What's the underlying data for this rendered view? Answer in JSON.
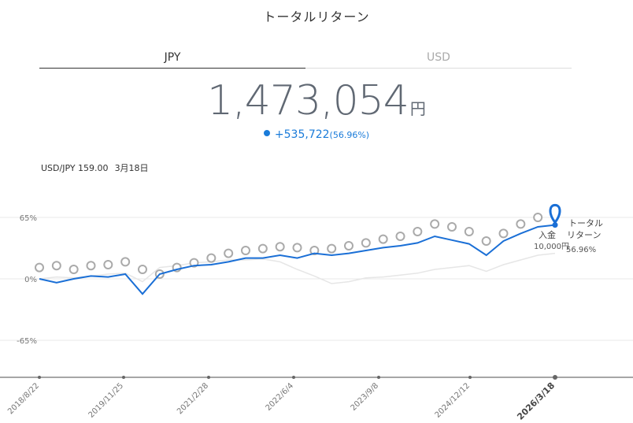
{
  "header": {
    "title": "トータルリターン"
  },
  "tabs": [
    {
      "label": "JPY",
      "active": true
    },
    {
      "label": "USD",
      "active": false
    }
  ],
  "summary": {
    "amount": "1,473,054",
    "unit": "円",
    "gain": "+535,722",
    "gain_pct": "(56.96%)"
  },
  "fx": {
    "pair": "USD/JPY 159.00",
    "date": "3月18日"
  },
  "colors": {
    "accent": "#1a6fd6",
    "deposit": "#aaaaaa",
    "benchmark": "#e6e6e6",
    "axis": "#777777"
  },
  "annotations": {
    "total_return_label": "トータル リターン",
    "total_return_pct": "56.96%",
    "deposit_label": "入金",
    "deposit_amount": "10,000円"
  },
  "chart_data": {
    "type": "line",
    "title": "",
    "xlabel": "",
    "ylabel": "",
    "y_ticks": [
      "65%",
      "0%",
      "-65%"
    ],
    "x_ticks": [
      "2018/8/22",
      "2019/11/25",
      "2021/2/28",
      "2022/6/4",
      "2023/9/8",
      "2024/12/12",
      "2026/3/18"
    ],
    "ylim": [
      -105,
      75
    ],
    "x": [
      "2018/8/22",
      "2018/11",
      "2019/2",
      "2019/5",
      "2019/8",
      "2019/11/25",
      "2020/3",
      "2020/6",
      "2020/9",
      "2020/12",
      "2021/2/28",
      "2021/6",
      "2021/9",
      "2021/12",
      "2022/3",
      "2022/6/4",
      "2022/9",
      "2022/12",
      "2023/3",
      "2023/6",
      "2023/9/8",
      "2023/12",
      "2024/3",
      "2024/6",
      "2024/9",
      "2024/12/12",
      "2025/3",
      "2025/6",
      "2025/9",
      "2025/12",
      "2026/3/18"
    ],
    "series": [
      {
        "name": "トータル リターン",
        "values": [
          0,
          -4,
          0,
          3,
          2,
          5,
          -16,
          5,
          10,
          14,
          15,
          18,
          22,
          22,
          25,
          22,
          27,
          25,
          27,
          30,
          33,
          35,
          38,
          45,
          41,
          37,
          25,
          40,
          48,
          55,
          57
        ]
      },
      {
        "name": "入金",
        "values": [
          12,
          14,
          10,
          14,
          15,
          18,
          10,
          5,
          12,
          17,
          22,
          27,
          30,
          32,
          34,
          33,
          30,
          32,
          35,
          38,
          42,
          45,
          50,
          58,
          55,
          50,
          40,
          48,
          58,
          65,
          68
        ]
      },
      {
        "name": "",
        "values": [
          0,
          2,
          1,
          3,
          5,
          6,
          -3,
          12,
          14,
          17,
          18,
          20,
          20,
          21,
          18,
          10,
          3,
          -5,
          -3,
          1,
          2,
          4,
          6,
          10,
          12,
          14,
          8,
          15,
          20,
          25,
          27
        ]
      }
    ]
  }
}
